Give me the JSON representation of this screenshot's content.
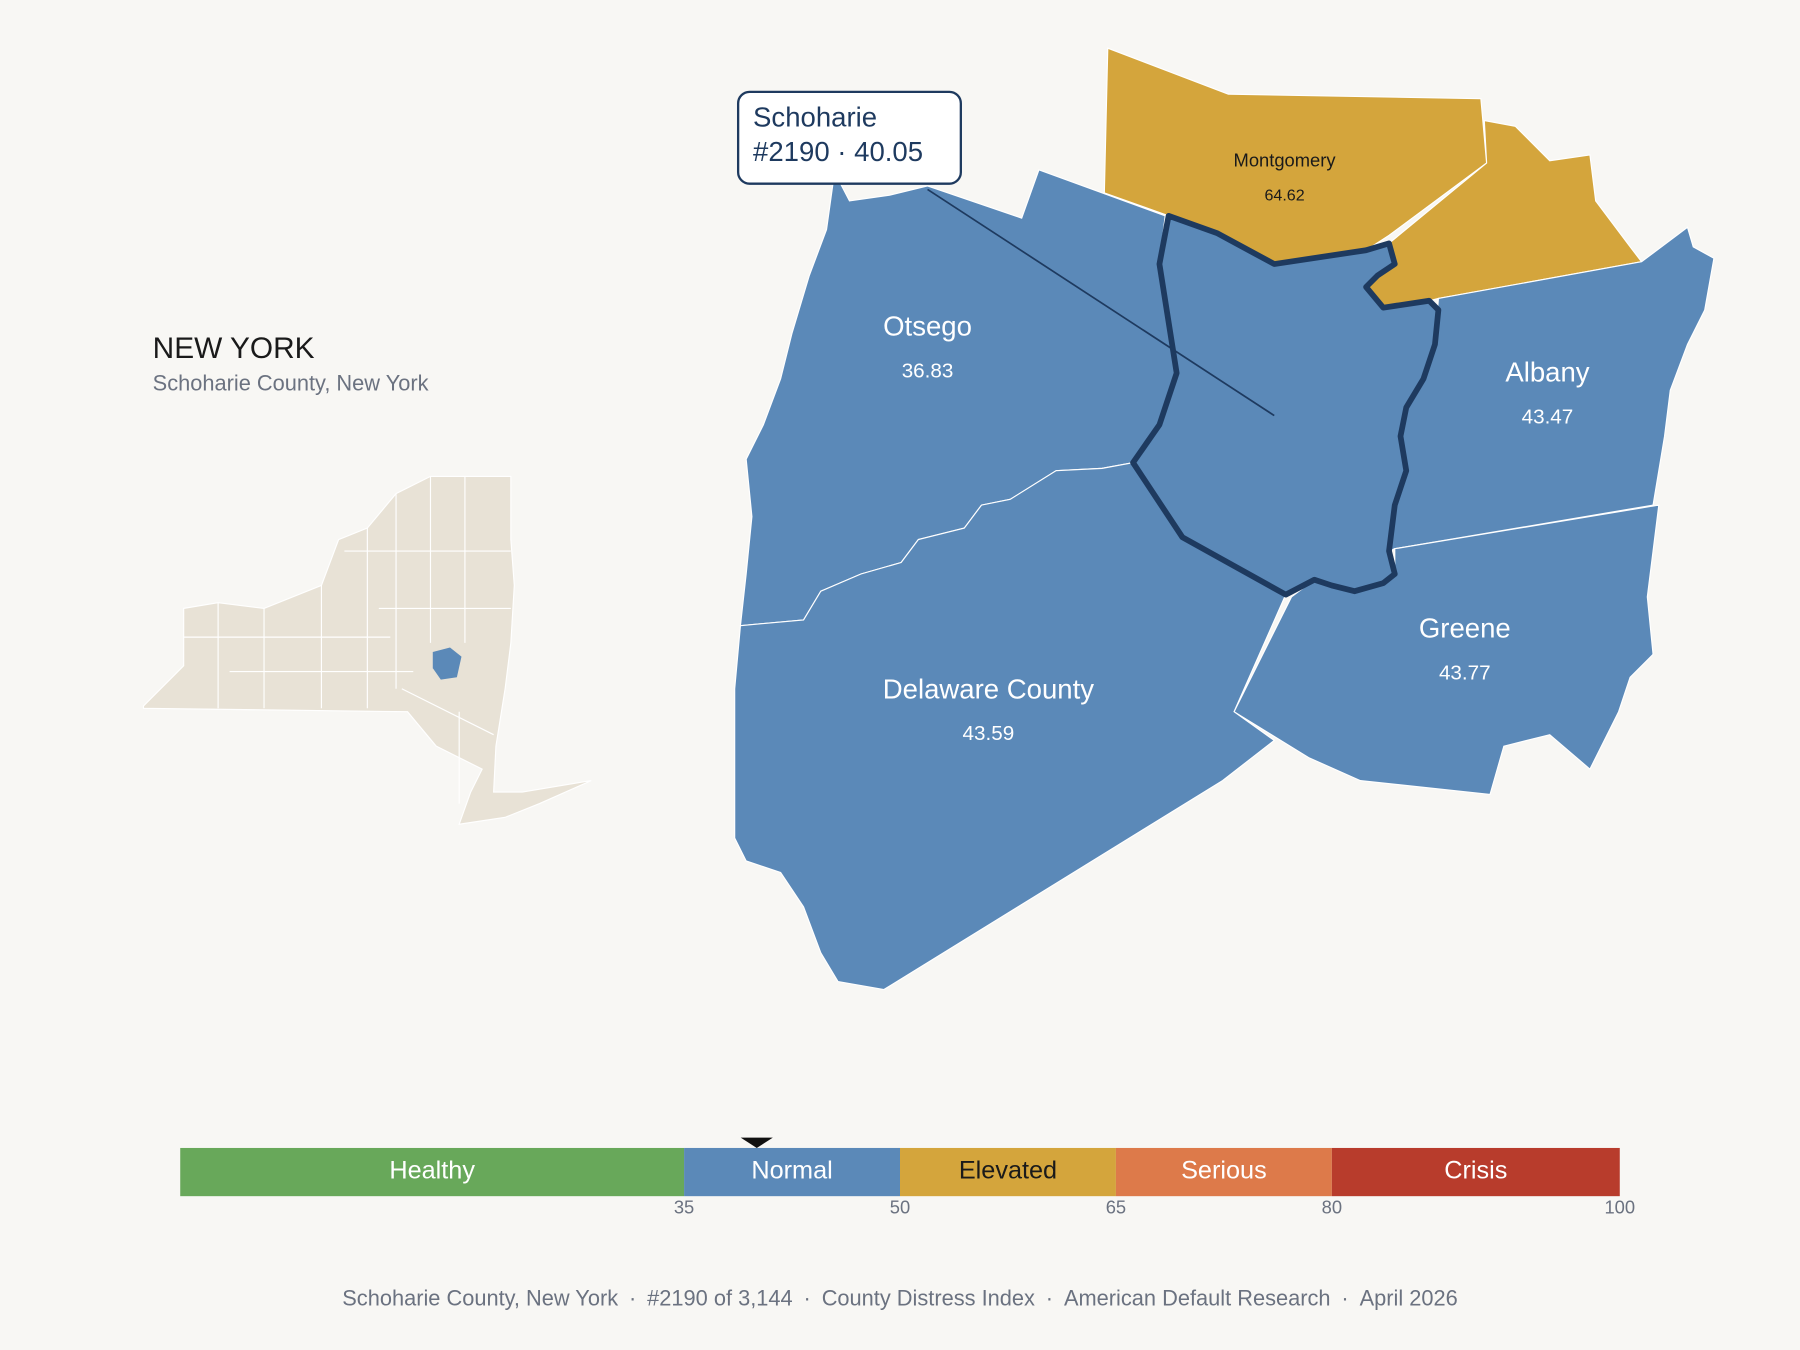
{
  "header": {
    "title": "NEW YORK",
    "subtitle": "Schoharie County, New York"
  },
  "callout": {
    "name": "Schoharie",
    "detail": "#2190 · 40.05",
    "value": 40.05
  },
  "counties": [
    {
      "name": "Otsego",
      "value": 36.83
    },
    {
      "name": "Montgomery",
      "value": 64.62
    },
    {
      "name": "Albany",
      "value": 43.47
    },
    {
      "name": "Greene",
      "value": 43.77
    },
    {
      "name": "Delaware County",
      "value": 43.59
    }
  ],
  "scale": {
    "range": [
      0,
      100
    ],
    "ticks": [
      35,
      50,
      65,
      80,
      100
    ],
    "bands": [
      {
        "label": "Healthy",
        "color": "#68a85a"
      },
      {
        "label": "Normal",
        "color": "#5b89b8"
      },
      {
        "label": "Elevated",
        "color": "#d4a53c"
      },
      {
        "label": "Serious",
        "color": "#dd7a4a"
      },
      {
        "label": "Crisis",
        "color": "#b83c2c"
      }
    ]
  },
  "footer": {
    "items": [
      "Schoharie County, New York",
      "#2190 of 3,144",
      "County Distress Index",
      "American Default Research",
      "April 2026"
    ],
    "separator": "·"
  }
}
